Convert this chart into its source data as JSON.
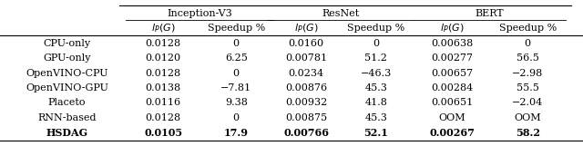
{
  "col_groups": [
    "Inception-V3",
    "ResNet",
    "BERT"
  ],
  "sub_headers": [
    "$l_P(G)$",
    "Speedup %",
    "$l_P(G)$",
    "Speedup %",
    "$l_P(G)$",
    "Speedup %"
  ],
  "row_labels": [
    "CPU-only",
    "GPU-only",
    "OpenVINO-CPU",
    "OpenVINO-GPU",
    "Placeto",
    "RNN-based",
    "HSDAG"
  ],
  "rows": [
    [
      "0.0128",
      "0",
      "0.0160",
      "0",
      "0.00638",
      "0"
    ],
    [
      "0.0120",
      "6.25",
      "0.00781",
      "51.2",
      "0.00277",
      "56.5"
    ],
    [
      "0.0128",
      "0",
      "0.0234",
      "−46.3",
      "0.00657",
      "−2.98"
    ],
    [
      "0.0138",
      "−7.81",
      "0.00876",
      "45.3",
      "0.00284",
      "55.5"
    ],
    [
      "0.0116",
      "9.38",
      "0.00932",
      "41.8",
      "0.00651",
      "−2.04"
    ],
    [
      "0.0128",
      "0",
      "0.00875",
      "45.3",
      "OOM",
      "OOM"
    ],
    [
      "0.0105",
      "17.9",
      "0.00766",
      "52.1",
      "0.00267",
      "58.2"
    ]
  ],
  "bold_row": 6,
  "figsize": [
    6.4,
    1.61
  ],
  "dpi": 100,
  "font_size": 8.0
}
